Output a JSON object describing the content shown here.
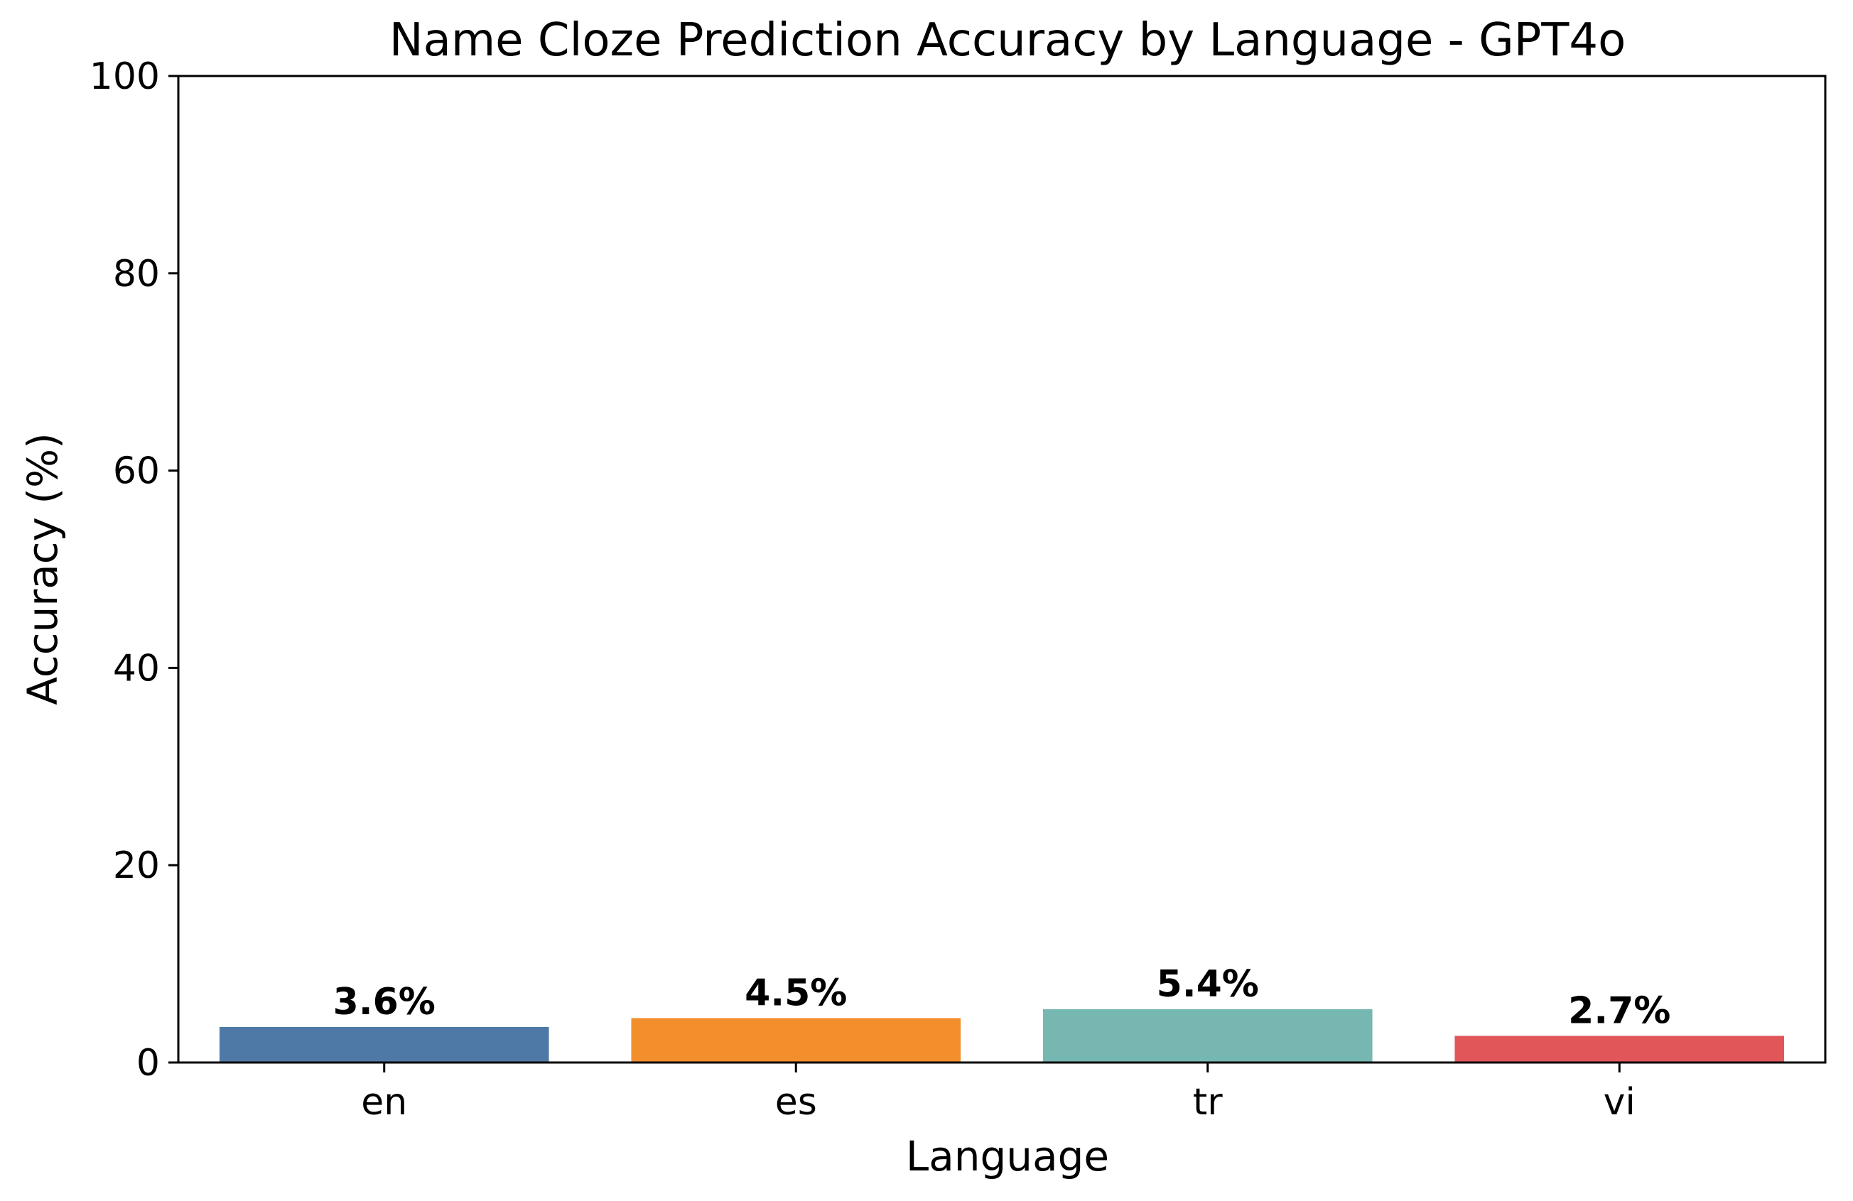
{
  "chart_data": {
    "type": "bar",
    "title": "Name Cloze Prediction Accuracy by Language - GPT4o",
    "xlabel": "Language",
    "ylabel": "Accuracy (%)",
    "categories": [
      "en",
      "es",
      "tr",
      "vi"
    ],
    "values": [
      3.6,
      4.5,
      5.4,
      2.7
    ],
    "value_labels": [
      "3.6%",
      "4.5%",
      "5.4%",
      "2.7%"
    ],
    "colors": [
      "#4e79a7",
      "#f28e2b",
      "#76b7b2",
      "#e15759"
    ],
    "ylim": [
      0,
      100
    ],
    "yticks": [
      0,
      20,
      40,
      60,
      80,
      100
    ],
    "ytick_labels": [
      "0",
      "20",
      "40",
      "60",
      "80",
      "100"
    ],
    "grid": false,
    "legend": "none"
  }
}
